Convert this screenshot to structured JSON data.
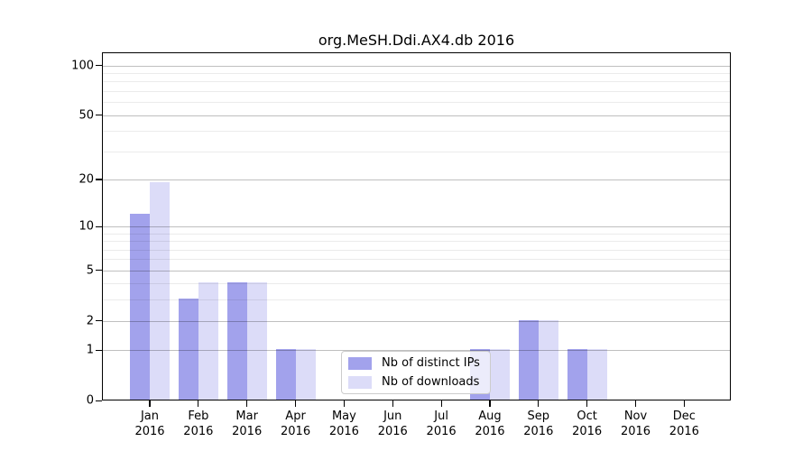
{
  "page": {
    "background": "#ffffff"
  },
  "chart_data": {
    "type": "bar",
    "title": "org.MeSH.Ddi.AX4.db 2016",
    "categories": [
      "Jan 2016",
      "Feb 2016",
      "Mar 2016",
      "Apr 2016",
      "May 2016",
      "Jun 2016",
      "Jul 2016",
      "Aug 2016",
      "Sep 2016",
      "Oct 2016",
      "Nov 2016",
      "Dec 2016"
    ],
    "series": [
      {
        "name": "Nb of distinct IPs",
        "color": "#a2a2ec",
        "values": [
          12,
          3,
          4,
          1,
          0,
          0,
          0,
          1,
          2,
          1,
          0,
          0
        ]
      },
      {
        "name": "Nb of downloads",
        "color": "#dcdcf8",
        "values": [
          19,
          4,
          4,
          1,
          0,
          0,
          0,
          1,
          2,
          1,
          0,
          0
        ]
      }
    ],
    "yscale": "log1p",
    "ylim": [
      0,
      120
    ],
    "ytick_values": [
      0,
      1,
      2,
      5,
      10,
      20,
      50,
      100
    ],
    "ytick_labels": [
      "0",
      "1",
      "2",
      "5",
      "10",
      "20",
      "50",
      "100"
    ],
    "minor_ytick_values": [
      3,
      4,
      6,
      7,
      8,
      9,
      30,
      40,
      60,
      70,
      80,
      90
    ],
    "grid": "both",
    "legend_position": "lower center",
    "bar_mode": "paired-side-by-side"
  },
  "colors": {
    "major_grid": "rgba(0,0,0,0.25)",
    "minor_grid": "rgba(0,0,0,0.08)",
    "spine": "#000000",
    "legend_border": "#cccccc",
    "legend_background": "rgba(255,255,255,0.8)"
  }
}
